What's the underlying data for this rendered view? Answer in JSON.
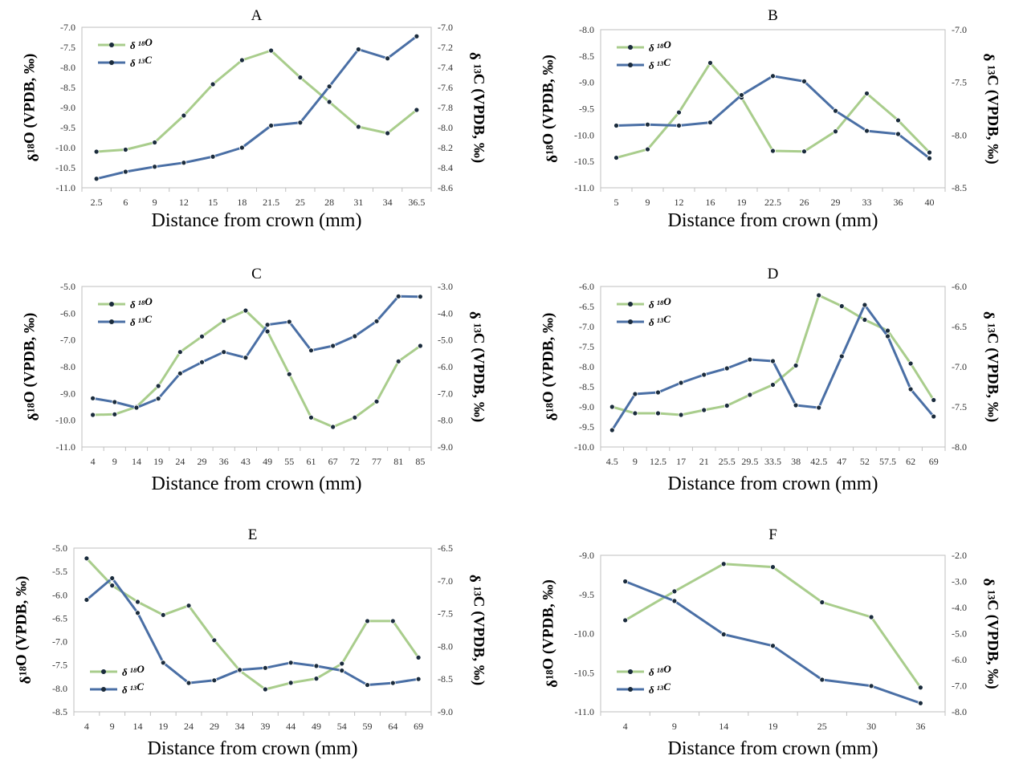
{
  "colors": {
    "o18": "#a9cd8c",
    "c13": "#4a6fa5",
    "marker": "#1a2b3c",
    "axis": "#bfbfbf"
  },
  "chart_data": [
    {
      "type": "line",
      "panel": "A",
      "title": "A",
      "xlabel": "Distance from crown (mm)",
      "ylabel_left": "δ18O (VPDB, ‰)",
      "ylabel_right": "δ 13C (VPDB, ‰)",
      "categories": [
        "2.5",
        "6",
        "9",
        "12",
        "15",
        "18",
        "21.5",
        "25",
        "28",
        "31",
        "34",
        "36.5"
      ],
      "ylim_left": [
        -11.0,
        -7.0
      ],
      "yticks_left": [
        "-7.0",
        "-7.5",
        "-8.0",
        "-8.5",
        "-9.0",
        "-9.5",
        "-10.0",
        "-10.5",
        "-11.0"
      ],
      "ylim_right": [
        -8.6,
        -7.0
      ],
      "yticks_right": [
        "-7.0",
        "-7.2",
        "-7.4",
        "-7.6",
        "-7.8",
        "-8.0",
        "-8.2",
        "-8.4",
        "-8.6"
      ],
      "legend": {
        "position": "top-left",
        "o18": "δ 18O",
        "c13": "δ 13C"
      },
      "series": [
        {
          "name": "δ 18O",
          "axis": "left",
          "values": [
            -10.1,
            -10.05,
            -9.87,
            -9.2,
            -8.42,
            -7.82,
            -7.58,
            -8.25,
            -8.86,
            -9.48,
            -9.64,
            -9.06
          ]
        },
        {
          "name": "δ 13C",
          "axis": "right",
          "values": [
            -8.51,
            -8.44,
            -8.39,
            -8.35,
            -8.29,
            -8.2,
            -7.98,
            -7.95,
            -7.59,
            -7.22,
            -7.31,
            -7.09
          ]
        }
      ]
    },
    {
      "type": "line",
      "panel": "B",
      "title": "B",
      "xlabel": "Distance from crown (mm)",
      "ylabel_left": "δ18O (VPDB, ‰)",
      "ylabel_right": "δ 13C (VPDB, ‰)",
      "categories": [
        "5",
        "9",
        "12",
        "16",
        "19",
        "22.5",
        "26",
        "29",
        "33",
        "36",
        "40"
      ],
      "ylim_left": [
        -11.0,
        -8.0
      ],
      "yticks_left": [
        "-8.0",
        "-8.5",
        "-9.0",
        "-9.5",
        "-10.0",
        "-10.5",
        "-11.0"
      ],
      "ylim_right": [
        -8.5,
        -7.0
      ],
      "yticks_right": [
        "-7.0",
        "-7.5",
        "-8.0",
        "-8.5"
      ],
      "legend": {
        "position": "top-left",
        "o18": "δ 18O",
        "c13": "δ 13C"
      },
      "series": [
        {
          "name": "δ 18O",
          "axis": "left",
          "values": [
            -10.43,
            -10.27,
            -9.57,
            -8.63,
            -9.29,
            -10.3,
            -10.31,
            -9.93,
            -9.21,
            -9.72,
            -10.33
          ]
        },
        {
          "name": "δ 13C",
          "axis": "right",
          "values": [
            -7.91,
            -7.9,
            -7.91,
            -7.88,
            -7.62,
            -7.44,
            -7.49,
            -7.77,
            -7.96,
            -7.99,
            -8.22
          ]
        }
      ]
    },
    {
      "type": "line",
      "panel": "C",
      "title": "C",
      "xlabel": "Distance from crown (mm)",
      "ylabel_left": "δ18O (VPDB, ‰)",
      "ylabel_right": "δ 13C (VPDB, ‰)",
      "categories": [
        "4",
        "9",
        "14",
        "19",
        "24",
        "29",
        "36",
        "43",
        "49",
        "55",
        "61",
        "67",
        "72",
        "77",
        "81",
        "85"
      ],
      "ylim_left": [
        -11.0,
        -5.0
      ],
      "yticks_left": [
        "-5.0",
        "-6.0",
        "-7.0",
        "-8.0",
        "-9.0",
        "-10.0",
        "-11.0"
      ],
      "ylim_right": [
        -9.0,
        -3.0
      ],
      "yticks_right": [
        "-3.0",
        "-4.0",
        "-5.0",
        "-6.0",
        "-7.0",
        "-8.0",
        "-9.0"
      ],
      "legend": {
        "position": "top-left",
        "o18": "δ 18O",
        "c13": "δ 13C"
      },
      "series": [
        {
          "name": "δ 18O",
          "axis": "left",
          "values": [
            -9.8,
            -9.78,
            -9.5,
            -8.72,
            -7.45,
            -6.87,
            -6.28,
            -5.9,
            -6.68,
            -8.28,
            -9.9,
            -10.25,
            -9.9,
            -9.3,
            -7.8,
            -7.22
          ]
        },
        {
          "name": "δ 13C",
          "axis": "right",
          "values": [
            -7.18,
            -7.32,
            -7.53,
            -7.19,
            -6.25,
            -5.83,
            -5.45,
            -5.66,
            -4.43,
            -4.32,
            -5.39,
            -5.22,
            -4.86,
            -4.3,
            -3.37,
            -3.38
          ]
        }
      ]
    },
    {
      "type": "line",
      "panel": "D",
      "title": "D",
      "xlabel": "Distance from crown (mm)",
      "ylabel_left": "δ18O (VPDB, ‰)",
      "ylabel_right": "δ 13C (VPDB, ‰)",
      "categories": [
        "4.5",
        "9",
        "12.5",
        "17",
        "21",
        "25.5",
        "29.5",
        "33.5",
        "38",
        "42.5",
        "47",
        "52",
        "57.5",
        "62",
        "69"
      ],
      "ylim_left": [
        -10.0,
        -6.0
      ],
      "yticks_left": [
        "-6.0",
        "-6.5",
        "-7.0",
        "-7.5",
        "-8.0",
        "-8.5",
        "-9.0",
        "-9.5",
        "-10.0"
      ],
      "ylim_right": [
        -8.0,
        -6.0
      ],
      "yticks_right": [
        "-6.0",
        "-6.5",
        "-7.0",
        "-7.5",
        "-8.0"
      ],
      "legend": {
        "position": "top-left",
        "o18": "δ 18O",
        "c13": "δ 13C"
      },
      "series": [
        {
          "name": "δ 18O",
          "axis": "left",
          "values": [
            -9.0,
            -9.16,
            -9.16,
            -9.2,
            -9.08,
            -8.97,
            -8.7,
            -8.45,
            -7.97,
            -6.22,
            -6.49,
            -6.83,
            -7.1,
            -7.92,
            -8.83
          ]
        },
        {
          "name": "δ 13C",
          "axis": "right",
          "values": [
            -7.79,
            -7.34,
            -7.32,
            -7.2,
            -7.1,
            -7.02,
            -6.91,
            -6.93,
            -7.48,
            -7.51,
            -6.87,
            -6.23,
            -6.62,
            -7.28,
            -7.62
          ]
        }
      ]
    },
    {
      "type": "line",
      "panel": "E",
      "title": "E",
      "xlabel": "Distance from crown (mm)",
      "ylabel_left": "δ18O (VPDB, ‰)",
      "ylabel_right": "δ 13C (VPDB, ‰)",
      "categories": [
        "4",
        "9",
        "14",
        "19",
        "24",
        "29",
        "34",
        "39",
        "44",
        "49",
        "54",
        "59",
        "64",
        "69"
      ],
      "ylim_left": [
        -8.5,
        -5.0
      ],
      "yticks_left": [
        "-5.0",
        "-5.5",
        "-6.0",
        "-6.5",
        "-7.0",
        "-7.5",
        "-8.0",
        "-8.5"
      ],
      "ylim_right": [
        -9.0,
        -6.5
      ],
      "yticks_right": [
        "-6.5",
        "-7.0",
        "-7.5",
        "-8.0",
        "-8.5",
        "-9.0"
      ],
      "legend": {
        "position": "bottom-left",
        "o18": "δ 18O",
        "c13": "δ 13C"
      },
      "series": [
        {
          "name": "δ 18O",
          "axis": "left",
          "values": [
            -5.22,
            -5.8,
            -6.15,
            -6.43,
            -6.23,
            -6.97,
            -7.62,
            -8.02,
            -7.88,
            -7.79,
            -7.47,
            -6.56,
            -6.56,
            -7.34
          ]
        },
        {
          "name": "δ 13C",
          "axis": "right",
          "values": [
            -7.29,
            -6.96,
            -7.49,
            -8.25,
            -8.56,
            -8.52,
            -8.36,
            -8.33,
            -8.25,
            -8.3,
            -8.37,
            -8.59,
            -8.56,
            -8.5
          ]
        }
      ]
    },
    {
      "type": "line",
      "panel": "F",
      "title": "F",
      "xlabel": "Distance from crown (mm)",
      "ylabel_left": "δ18O (VPDB, ‰)",
      "ylabel_right": "δ 13C (VPDB, ‰)",
      "categories": [
        "4",
        "9",
        "14",
        "19",
        "25",
        "30",
        "36"
      ],
      "ylim_left": [
        -11.0,
        -9.0
      ],
      "yticks_left": [
        "-9.0",
        "-9.5",
        "-10.0",
        "-10.5",
        "-11.0"
      ],
      "ylim_right": [
        -8.0,
        -2.0
      ],
      "yticks_right": [
        "-2.0",
        "-3.0",
        "-4.0",
        "-5.0",
        "-6.0",
        "-7.0",
        "-8.0"
      ],
      "legend": {
        "position": "bottom-left",
        "o18": "δ 18O",
        "c13": "δ 13C"
      },
      "series": [
        {
          "name": "δ 18O",
          "axis": "left",
          "values": [
            -9.83,
            -9.46,
            -9.11,
            -9.15,
            -9.6,
            -9.79,
            -10.69
          ]
        },
        {
          "name": "δ 13C",
          "axis": "right",
          "values": [
            -3.0,
            -3.75,
            -5.03,
            -5.47,
            -6.77,
            -7.01,
            -7.67
          ]
        }
      ]
    }
  ]
}
